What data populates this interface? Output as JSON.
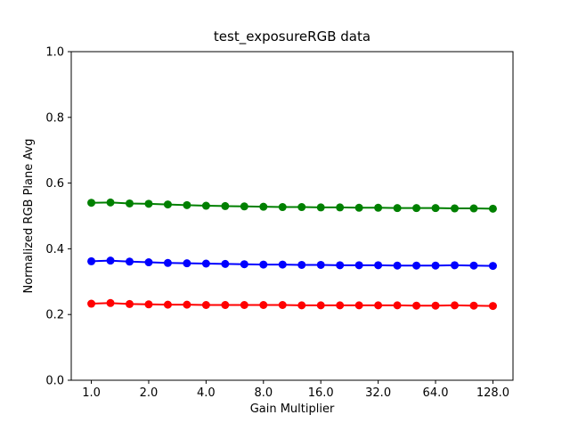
{
  "figure": {
    "background": "#ffffff",
    "axes_color": "#000000",
    "text_color": "#000000"
  },
  "chart_data": {
    "type": "line",
    "title": "test_exposureRGB data",
    "xlabel": "Gain Multiplier",
    "ylabel": "Normalized RGB Plane Avg",
    "x_scale": "log2",
    "xlim": [
      1,
      128
    ],
    "ylim": [
      0.0,
      1.0
    ],
    "x_margin_frac": 0.05,
    "grid": false,
    "legend_position": "none",
    "x_ticks": [
      1,
      2,
      4,
      8,
      16,
      32,
      64,
      128
    ],
    "x_tick_labels": [
      "1.0",
      "2.0",
      "4.0",
      "8.0",
      "16.0",
      "32.0",
      "64.0",
      "128.0"
    ],
    "y_ticks": [
      0.0,
      0.2,
      0.4,
      0.6,
      0.8,
      1.0
    ],
    "y_tick_labels": [
      "0.0",
      "0.2",
      "0.4",
      "0.6",
      "0.8",
      "1.0"
    ],
    "x": [
      1.0,
      1.2599,
      1.5874,
      2.0,
      2.5198,
      3.1748,
      4.0,
      5.0397,
      6.3496,
      8.0,
      10.0794,
      12.6992,
      16.0,
      20.1587,
      25.3984,
      32.0,
      40.3175,
      50.7968,
      64.0,
      80.6349,
      101.5937,
      128.0
    ],
    "series": [
      {
        "name": "green-plane",
        "color": "#008000",
        "marker": "circle",
        "values": [
          0.54,
          0.541,
          0.538,
          0.537,
          0.535,
          0.533,
          0.531,
          0.53,
          0.529,
          0.528,
          0.527,
          0.527,
          0.526,
          0.526,
          0.525,
          0.525,
          0.524,
          0.524,
          0.524,
          0.523,
          0.523,
          0.522
        ]
      },
      {
        "name": "blue-plane",
        "color": "#0000ff",
        "marker": "circle",
        "values": [
          0.362,
          0.364,
          0.361,
          0.359,
          0.357,
          0.356,
          0.355,
          0.354,
          0.353,
          0.352,
          0.352,
          0.351,
          0.351,
          0.35,
          0.35,
          0.35,
          0.349,
          0.349,
          0.349,
          0.35,
          0.349,
          0.348
        ]
      },
      {
        "name": "red-plane",
        "color": "#ff0000",
        "marker": "circle",
        "values": [
          0.233,
          0.235,
          0.232,
          0.231,
          0.23,
          0.23,
          0.229,
          0.229,
          0.229,
          0.229,
          0.229,
          0.228,
          0.228,
          0.228,
          0.228,
          0.228,
          0.228,
          0.227,
          0.227,
          0.228,
          0.227,
          0.226
        ]
      }
    ]
  }
}
